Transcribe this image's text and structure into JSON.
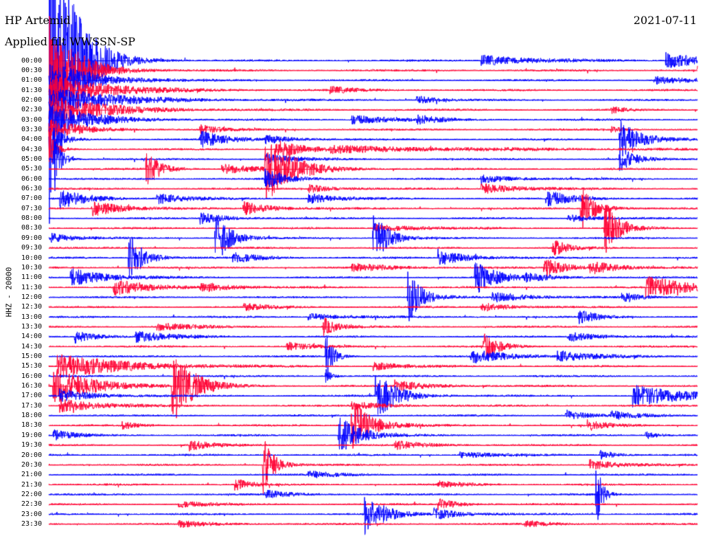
{
  "header": {
    "station": "HP Artemid",
    "filter_label": "Applied filt",
    "filter_name": "WWSSN-SP",
    "date": "2021-07-11"
  },
  "chart_data": {
    "type": "line",
    "title": "HP Artemid 2021-07-11",
    "ylabel": "HHZ - 20000",
    "colors": [
      "#0000ff",
      "#ff0033"
    ],
    "row_labels": [
      "00:00",
      "00:30",
      "01:00",
      "01:30",
      "02:00",
      "02:30",
      "03:00",
      "03:30",
      "04:00",
      "04:30",
      "05:00",
      "05:30",
      "06:00",
      "06:30",
      "07:00",
      "07:30",
      "08:00",
      "08:30",
      "09:00",
      "09:30",
      "10:00",
      "10:30",
      "11:00",
      "11:30",
      "12:00",
      "12:30",
      "13:00",
      "13:30",
      "14:00",
      "14:30",
      "15:00",
      "15:30",
      "16:00",
      "16:30",
      "17:00",
      "17:30",
      "18:00",
      "18:30",
      "19:00",
      "19:30",
      "20:00",
      "20:30",
      "21:00",
      "21:30",
      "22:00",
      "22:30",
      "23:00",
      "23:30"
    ],
    "row_minutes": 30,
    "series": [
      {
        "values": [
          [
            0,
            0.035,
            250
          ],
          [
            20,
            0.08,
            8
          ],
          [
            28.5,
            0.06,
            12
          ]
        ]
      },
      {
        "values": [
          [
            0,
            0.04,
            80
          ],
          [
            30,
            0.02,
            10
          ]
        ]
      },
      {
        "values": [
          [
            0,
            0.06,
            30
          ],
          [
            28,
            0.05,
            6
          ]
        ]
      },
      {
        "values": [
          [
            0,
            0.08,
            25
          ],
          [
            13,
            0.04,
            5
          ]
        ]
      },
      {
        "values": [
          [
            0,
            0.09,
            20
          ],
          [
            17,
            0.03,
            6
          ]
        ]
      },
      {
        "values": [
          [
            0,
            0.08,
            22
          ],
          [
            26,
            0.02,
            5
          ]
        ]
      },
      {
        "values": [
          [
            0,
            0.06,
            24
          ],
          [
            14,
            0.06,
            7
          ],
          [
            17,
            0.03,
            6
          ]
        ]
      },
      {
        "values": [
          [
            0,
            0.045,
            15
          ],
          [
            7,
            0.03,
            7
          ],
          [
            26,
            0.02,
            4
          ]
        ]
      },
      {
        "values": [
          [
            0,
            0.015,
            30
          ],
          [
            7,
            0.04,
            12
          ],
          [
            26.4,
            0.03,
            30
          ],
          [
            10,
            0.04,
            6
          ]
        ]
      },
      {
        "values": [
          [
            0,
            0.01,
            36
          ],
          [
            10.5,
            0.04,
            14
          ],
          [
            13,
            0.25,
            4
          ]
        ]
      },
      {
        "values": [
          [
            0.2,
            0.01,
            50
          ],
          [
            26.4,
            0.02,
            20
          ],
          [
            10,
            0.04,
            8
          ]
        ]
      },
      {
        "values": [
          [
            4.5,
            0.02,
            28
          ],
          [
            10,
            0.04,
            48
          ],
          [
            8,
            0.05,
            8
          ]
        ]
      },
      {
        "values": [
          [
            10,
            0.03,
            14
          ],
          [
            20,
            0.05,
            6
          ]
        ]
      },
      {
        "values": [
          [
            20,
            0.05,
            8
          ],
          [
            12,
            0.04,
            6
          ]
        ]
      },
      {
        "values": [
          [
            0.5,
            0.04,
            15
          ],
          [
            5,
            0.04,
            8
          ],
          [
            12,
            0.04,
            8
          ],
          [
            23,
            0.04,
            12
          ]
        ]
      },
      {
        "values": [
          [
            2,
            0.04,
            13
          ],
          [
            9,
            0.04,
            10
          ],
          [
            24.6,
            0.02,
            36
          ]
        ]
      },
      {
        "values": [
          [
            7,
            0.04,
            8
          ],
          [
            24,
            0.04,
            6
          ]
        ]
      },
      {
        "values": [
          [
            25.7,
            0.02,
            40
          ],
          [
            15,
            0.06,
            6
          ]
        ]
      },
      {
        "values": [
          [
            7.7,
            0.02,
            42
          ],
          [
            15,
            0.02,
            44
          ],
          [
            0,
            0.03,
            8
          ]
        ]
      },
      {
        "values": [
          [
            23.3,
            0.02,
            14
          ]
        ]
      },
      {
        "values": [
          [
            3.7,
            0.02,
            40
          ],
          [
            18,
            0.04,
            12
          ],
          [
            8.5,
            0.04,
            8
          ]
        ]
      },
      {
        "values": [
          [
            22.9,
            0.03,
            14
          ],
          [
            25,
            0.04,
            10
          ],
          [
            14,
            0.06,
            6
          ]
        ]
      },
      {
        "values": [
          [
            1,
            0.05,
            14
          ],
          [
            19.7,
            0.03,
            26
          ],
          [
            22,
            0.04,
            6
          ]
        ]
      },
      {
        "values": [
          [
            3,
            0.05,
            12
          ],
          [
            27.6,
            0.07,
            16
          ],
          [
            7,
            0.04,
            8
          ]
        ]
      },
      {
        "values": [
          [
            16.6,
            0.02,
            40
          ],
          [
            20.5,
            0.05,
            8
          ],
          [
            26.5,
            0.02,
            10
          ]
        ]
      },
      {
        "values": [
          [
            20,
            0.04,
            7
          ],
          [
            9,
            0.04,
            5
          ]
        ]
      },
      {
        "values": [
          [
            24.5,
            0.03,
            10
          ],
          [
            12,
            0.05,
            5
          ]
        ]
      },
      {
        "values": [
          [
            12.7,
            0.02,
            14
          ],
          [
            5,
            0.05,
            6
          ]
        ]
      },
      {
        "values": [
          [
            1.2,
            0.03,
            10
          ],
          [
            4,
            0.05,
            8
          ],
          [
            24,
            0.04,
            8
          ]
        ]
      },
      {
        "values": [
          [
            20.1,
            0.02,
            24
          ],
          [
            11,
            0.04,
            6
          ]
        ]
      },
      {
        "values": [
          [
            12.8,
            0.01,
            46
          ],
          [
            19.5,
            0.06,
            10
          ],
          [
            23.5,
            0.05,
            8
          ]
        ]
      },
      {
        "values": [
          [
            0.4,
            0.1,
            18
          ],
          [
            15,
            0.04,
            6
          ]
        ]
      },
      {
        "values": [
          [
            12.8,
            0.01,
            10
          ]
        ]
      },
      {
        "values": [
          [
            0.2,
            0.06,
            26
          ],
          [
            5.7,
            0.03,
            56
          ],
          [
            16,
            0.05,
            8
          ]
        ]
      },
      {
        "values": [
          [
            0.5,
            0.05,
            10
          ],
          [
            15.1,
            0.03,
            38
          ],
          [
            27,
            0.08,
            16
          ]
        ]
      },
      {
        "values": [
          [
            0.5,
            0.06,
            10
          ],
          [
            14,
            0.05,
            6
          ]
        ]
      },
      {
        "values": [
          [
            23.9,
            0.03,
            8
          ],
          [
            26,
            0.04,
            6
          ]
        ]
      },
      {
        "values": [
          [
            14,
            0.03,
            38
          ],
          [
            24.9,
            0.03,
            8
          ],
          [
            3.4,
            0.02,
            6
          ]
        ]
      },
      {
        "values": [
          [
            13.4,
            0.03,
            30
          ],
          [
            0.2,
            0.03,
            8
          ],
          [
            27.6,
            0.02,
            6
          ]
        ]
      },
      {
        "values": [
          [
            6.5,
            0.03,
            8
          ],
          [
            16,
            0.05,
            6
          ]
        ]
      },
      {
        "values": [
          [
            25.5,
            0.02,
            8
          ],
          [
            19,
            0.05,
            5
          ]
        ]
      },
      {
        "values": [
          [
            9.9,
            0.015,
            46
          ],
          [
            25,
            0.04,
            8
          ]
        ]
      },
      {
        "values": [
          [
            12,
            0.05,
            5
          ]
        ]
      },
      {
        "values": [
          [
            8.6,
            0.02,
            10
          ],
          [
            18,
            0.04,
            5
          ]
        ]
      },
      {
        "values": [
          [
            25.3,
            0.008,
            56
          ],
          [
            10,
            0.04,
            6
          ]
        ]
      },
      {
        "values": [
          [
            18,
            0.03,
            8
          ],
          [
            6,
            0.04,
            5
          ]
        ]
      },
      {
        "values": [
          [
            14.6,
            0.03,
            30
          ],
          [
            17.8,
            0.04,
            8
          ]
        ]
      },
      {
        "values": [
          [
            6,
            0.05,
            5
          ],
          [
            22,
            0.04,
            5
          ]
        ]
      }
    ]
  }
}
